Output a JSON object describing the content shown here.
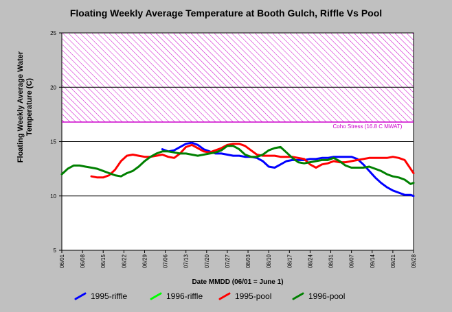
{
  "chart_data": {
    "type": "line",
    "title": "Floating Weekly Average Temperature at Booth Gulch, Riffle Vs Pool",
    "ylabel_lines": [
      "Floating Weekly Average Water",
      "Temperature (C)"
    ],
    "xlabel": "Date MMDD (06/01 = June 1)",
    "ylim": [
      5,
      25
    ],
    "yticks": [
      5,
      10,
      15,
      20,
      25
    ],
    "gridlines_y": [
      15
    ],
    "x_start": "06/01",
    "x_end": "09/28",
    "xticks": [
      "06/01",
      "06/08",
      "06/15",
      "06/22",
      "06/29",
      "07/06",
      "07/13",
      "07/20",
      "07/27",
      "08/03",
      "08/10",
      "08/17",
      "08/24",
      "08/31",
      "09/07",
      "09/14",
      "09/21",
      "09/28"
    ],
    "threshold": {
      "label": "Coho Stress (16.8 C MWAT)",
      "from": 16.8,
      "to": 25,
      "line": 20,
      "color": "#cc00cc"
    },
    "series": [
      {
        "name": "1995-riffle",
        "color": "#0000ff",
        "x": [
          "07/05",
          "07/07",
          "07/09",
          "07/11",
          "07/13",
          "07/15",
          "07/17",
          "07/19",
          "07/21",
          "07/23",
          "07/25",
          "07/27",
          "07/29",
          "07/31",
          "08/02",
          "08/04",
          "08/06",
          "08/08",
          "08/10",
          "08/12",
          "08/14",
          "08/16",
          "08/18",
          "08/20",
          "08/22",
          "08/24",
          "08/26",
          "08/28",
          "08/30",
          "09/01",
          "09/03",
          "09/05",
          "09/07",
          "09/09",
          "09/11",
          "09/13",
          "09/15",
          "09/17",
          "09/19",
          "09/21",
          "09/23",
          "09/25",
          "09/27",
          "09/28"
        ],
        "y": [
          14.3,
          14.1,
          14.2,
          14.5,
          14.8,
          14.9,
          14.7,
          14.3,
          14.1,
          13.9,
          13.9,
          13.8,
          13.7,
          13.7,
          13.6,
          13.6,
          13.5,
          13.2,
          12.7,
          12.6,
          12.9,
          13.2,
          13.3,
          13.3,
          13.3,
          13.4,
          13.4,
          13.5,
          13.5,
          13.6,
          13.6,
          13.6,
          13.6,
          13.4,
          12.9,
          12.3,
          11.7,
          11.2,
          10.8,
          10.5,
          10.3,
          10.1,
          10.1,
          10.0
        ]
      },
      {
        "name": "1996-riffle",
        "color": "#00ff00",
        "x": [],
        "y": []
      },
      {
        "name": "1995-pool",
        "color": "#ff0000",
        "x": [
          "06/11",
          "06/13",
          "06/15",
          "06/17",
          "06/19",
          "06/21",
          "06/23",
          "06/25",
          "06/27",
          "06/29",
          "07/01",
          "07/03",
          "07/05",
          "07/07",
          "07/09",
          "07/11",
          "07/13",
          "07/15",
          "07/17",
          "07/19",
          "07/21",
          "07/23",
          "07/25",
          "07/27",
          "07/29",
          "07/31",
          "08/02",
          "08/04",
          "08/06",
          "08/08",
          "08/10",
          "08/12",
          "08/14",
          "08/16",
          "08/18",
          "08/20",
          "08/22",
          "08/24",
          "08/26",
          "08/28",
          "08/30",
          "09/01",
          "09/03",
          "09/05",
          "09/07",
          "09/09",
          "09/11",
          "09/13",
          "09/15",
          "09/17",
          "09/19",
          "09/21",
          "09/23",
          "09/25",
          "09/27",
          "09/28"
        ],
        "y": [
          11.8,
          11.7,
          11.7,
          11.9,
          12.4,
          13.2,
          13.7,
          13.8,
          13.7,
          13.6,
          13.6,
          13.7,
          13.8,
          13.6,
          13.5,
          13.9,
          14.5,
          14.7,
          14.4,
          14.1,
          14.0,
          14.2,
          14.4,
          14.7,
          14.8,
          14.8,
          14.6,
          14.2,
          13.8,
          13.7,
          13.7,
          13.7,
          13.6,
          13.6,
          13.6,
          13.5,
          13.4,
          12.9,
          12.6,
          12.9,
          13.0,
          13.2,
          13.1,
          13.1,
          13.2,
          13.3,
          13.4,
          13.5,
          13.5,
          13.5,
          13.5,
          13.6,
          13.5,
          13.3,
          12.5,
          12.1
        ]
      },
      {
        "name": "1996-pool",
        "color": "#008000",
        "x": [
          "06/01",
          "06/03",
          "06/05",
          "06/07",
          "06/09",
          "06/11",
          "06/13",
          "06/15",
          "06/17",
          "06/19",
          "06/21",
          "06/23",
          "06/25",
          "06/27",
          "06/29",
          "07/01",
          "07/03",
          "07/05",
          "07/07",
          "07/09",
          "07/11",
          "07/13",
          "07/15",
          "07/17",
          "07/19",
          "07/21",
          "07/23",
          "07/25",
          "07/27",
          "07/29",
          "07/31",
          "08/02",
          "08/04",
          "08/06",
          "08/08",
          "08/10",
          "08/12",
          "08/14",
          "08/16",
          "08/18",
          "08/20",
          "08/22",
          "08/24",
          "08/26",
          "08/28",
          "08/30",
          "09/01",
          "09/03",
          "09/05",
          "09/07",
          "09/09",
          "09/11",
          "09/13",
          "09/15",
          "09/17",
          "09/19",
          "09/21",
          "09/23",
          "09/25",
          "09/27",
          "09/28"
        ],
        "y": [
          12.0,
          12.5,
          12.8,
          12.8,
          12.7,
          12.6,
          12.5,
          12.3,
          12.1,
          11.9,
          11.8,
          12.1,
          12.3,
          12.7,
          13.2,
          13.6,
          13.9,
          14.1,
          14.1,
          14.0,
          13.9,
          13.9,
          13.8,
          13.7,
          13.8,
          13.9,
          14.0,
          14.2,
          14.6,
          14.6,
          14.3,
          13.8,
          13.6,
          13.6,
          13.8,
          14.2,
          14.4,
          14.5,
          14.0,
          13.5,
          13.1,
          13.0,
          13.1,
          13.2,
          13.3,
          13.3,
          13.5,
          13.2,
          12.8,
          12.6,
          12.6,
          12.6,
          12.7,
          12.5,
          12.3,
          12.0,
          11.8,
          11.7,
          11.5,
          11.1,
          11.2
        ]
      }
    ],
    "legend_placement": "bottom",
    "grid": false
  }
}
